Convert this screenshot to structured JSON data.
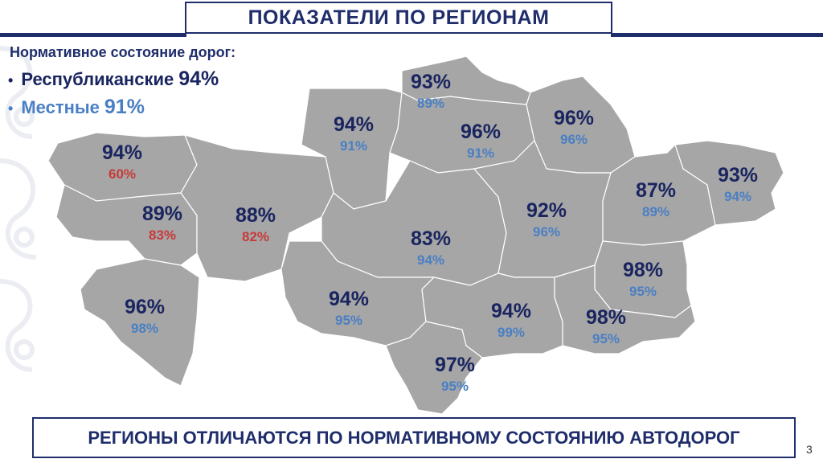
{
  "header": {
    "title": "ПОКАЗАТЕЛИ ПО РЕГИОНАМ"
  },
  "intro": {
    "subtitle": "Нормативное состояние дорог:",
    "republican": {
      "bullet": "•",
      "label": "Республиканские",
      "value": "94%"
    },
    "local": {
      "bullet": "•",
      "label": "Местные",
      "value": "91%"
    }
  },
  "regions": [
    {
      "name": "west-kazakhstan",
      "republican": "94%",
      "local": "60%",
      "local_below_target": true
    },
    {
      "name": "atyrau",
      "republican": "89%",
      "local": "83%",
      "local_below_target": true
    },
    {
      "name": "aktobe",
      "republican": "88%",
      "local": "82%",
      "local_below_target": true
    },
    {
      "name": "mangystau",
      "republican": "96%",
      "local": "98%",
      "local_below_target": false
    },
    {
      "name": "kostanay",
      "republican": "94%",
      "local": "91%",
      "local_below_target": false
    },
    {
      "name": "north-kazakhstan",
      "republican": "93%",
      "local": "89%",
      "local_below_target": false
    },
    {
      "name": "akmola",
      "republican": "96%",
      "local": "91%",
      "local_below_target": false
    },
    {
      "name": "pavlodar",
      "republican": "96%",
      "local": "96%",
      "local_below_target": false
    },
    {
      "name": "ulytau",
      "republican": "83%",
      "local": "94%",
      "local_below_target": false
    },
    {
      "name": "karaganda",
      "republican": "92%",
      "local": "96%",
      "local_below_target": false
    },
    {
      "name": "abai",
      "republican": "87%",
      "local": "89%",
      "local_below_target": false
    },
    {
      "name": "east-kazakhstan",
      "republican": "93%",
      "local": "94%",
      "local_below_target": false
    },
    {
      "name": "kyzylorda",
      "republican": "94%",
      "local": "95%",
      "local_below_target": false
    },
    {
      "name": "zhetysu",
      "republican": "98%",
      "local": "95%",
      "local_below_target": false
    },
    {
      "name": "zhambyl",
      "republican": "94%",
      "local": "99%",
      "local_below_target": false
    },
    {
      "name": "almaty",
      "republican": "98%",
      "local": "95%",
      "local_below_target": false
    },
    {
      "name": "turkistan",
      "republican": "97%",
      "local": "95%",
      "local_below_target": false
    }
  ],
  "footer": {
    "text": "РЕГИОНЫ ОТЛИЧАЮТСЯ ПО НОРМАТИВНОМУ СОСТОЯНИЮ АВТОДОРОГ"
  },
  "page_number": "3",
  "colors": {
    "navy": "#1f2d6b",
    "republican_text": "#1a2560",
    "local_text": "#4a7fc4",
    "below_target_text": "#c73a3a",
    "map_fill": "#a6a6a6"
  }
}
